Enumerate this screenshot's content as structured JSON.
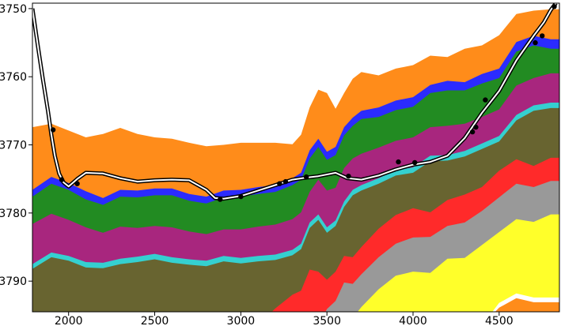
{
  "chart_data": {
    "type": "area",
    "title": "",
    "xlabel": "",
    "ylabel": "",
    "xlim": [
      1790,
      4850
    ],
    "ylim": [
      3794.5,
      3749.2
    ],
    "y_inverted": true,
    "grid": false,
    "legend": "none",
    "x_ticks": [
      2000,
      2500,
      3000,
      3500,
      4000,
      4500
    ],
    "y_ticks": [
      3750,
      3760,
      3770,
      3780,
      3790
    ],
    "x_tick_labels": [
      "2000",
      "2500",
      "3000",
      "3500",
      "4000",
      "4500"
    ],
    "y_tick_labels": [
      "3750",
      "3760",
      "3770",
      "3780",
      "3790"
    ],
    "x": [
      1790,
      1900,
      2000,
      2100,
      2200,
      2300,
      2400,
      2500,
      2600,
      2700,
      2800,
      2900,
      3000,
      3100,
      3200,
      3300,
      3350,
      3400,
      3450,
      3500,
      3550,
      3600,
      3650,
      3700,
      3800,
      3900,
      4000,
      4100,
      4200,
      4300,
      4400,
      4500,
      4600,
      4700,
      4800,
      4850
    ],
    "layers": [
      {
        "color": "#ff8c1a",
        "top": [
          3767.4,
          3766.9,
          3767.9,
          3768.9,
          3768.4,
          3767.5,
          3768.4,
          3768.9,
          3769.1,
          3769.7,
          3770.2,
          3770.0,
          3769.7,
          3769.7,
          3769.7,
          3769.9,
          3768.5,
          3764.5,
          3761.9,
          3762.4,
          3764.7,
          3762.4,
          3760.3,
          3759.3,
          3759.8,
          3758.8,
          3758.3,
          3756.9,
          3757.1,
          3755.9,
          3755.4,
          3753.9,
          3750.8,
          3750.3,
          3750.1,
          3750.1
        ]
      },
      {
        "color": "#2b2bff",
        "top": [
          3776.6,
          3774.7,
          3775.6,
          3776.8,
          3777.8,
          3776.6,
          3776.7,
          3776.4,
          3776.4,
          3777.2,
          3777.6,
          3776.7,
          3776.6,
          3776.2,
          3775.9,
          3774.9,
          3774.1,
          3770.8,
          3769.1,
          3771.0,
          3770.3,
          3767.4,
          3766.0,
          3765.0,
          3764.5,
          3763.5,
          3763.0,
          3761.2,
          3760.6,
          3760.8,
          3759.6,
          3758.8,
          3754.9,
          3754.0,
          3754.5,
          3754.5
        ]
      },
      {
        "color": "#228b22",
        "top": [
          3777.6,
          3775.7,
          3776.6,
          3778.0,
          3778.8,
          3777.6,
          3777.7,
          3777.4,
          3777.4,
          3778.2,
          3778.6,
          3777.7,
          3777.6,
          3777.2,
          3776.9,
          3775.9,
          3775.1,
          3772.0,
          3770.3,
          3772.2,
          3771.5,
          3768.6,
          3767.2,
          3766.2,
          3765.9,
          3764.9,
          3764.4,
          3762.4,
          3762.0,
          3762.0,
          3761.0,
          3760.2,
          3756.3,
          3755.4,
          3755.9,
          3755.9
        ]
      },
      {
        "color": "#a8267e",
        "top": [
          3781.6,
          3780.1,
          3781.0,
          3782.1,
          3782.9,
          3782.0,
          3782.2,
          3781.9,
          3782.1,
          3782.7,
          3783.1,
          3782.4,
          3782.4,
          3782.0,
          3781.7,
          3780.9,
          3779.9,
          3776.9,
          3775.1,
          3776.7,
          3776.3,
          3773.4,
          3772.0,
          3771.3,
          3770.4,
          3769.4,
          3768.9,
          3767.4,
          3767.2,
          3766.9,
          3765.9,
          3764.8,
          3761.3,
          3760.2,
          3759.5,
          3759.5
        ]
      },
      {
        "color": "#35d0d0",
        "top": [
          3787.5,
          3785.8,
          3786.3,
          3787.2,
          3787.3,
          3786.7,
          3786.4,
          3786.0,
          3786.5,
          3786.8,
          3787.0,
          3786.3,
          3786.6,
          3786.3,
          3786.1,
          3785.4,
          3784.5,
          3781.4,
          3780.2,
          3782.1,
          3781.1,
          3778.3,
          3776.6,
          3775.9,
          3774.9,
          3773.7,
          3773.3,
          3771.6,
          3771.5,
          3770.9,
          3769.8,
          3768.7,
          3765.6,
          3764.2,
          3763.8,
          3763.8
        ]
      },
      {
        "color": "#686430",
        "top": [
          3788.2,
          3786.5,
          3787.0,
          3788.0,
          3788.1,
          3787.5,
          3787.2,
          3786.8,
          3787.3,
          3787.6,
          3787.8,
          3787.1,
          3787.4,
          3787.1,
          3786.9,
          3786.2,
          3785.3,
          3782.2,
          3781.0,
          3782.9,
          3781.9,
          3779.1,
          3777.4,
          3776.7,
          3775.7,
          3774.5,
          3774.1,
          3772.4,
          3772.3,
          3771.7,
          3770.6,
          3769.5,
          3766.4,
          3765.0,
          3764.6,
          3764.6
        ]
      },
      {
        "color": "#ff2a2a",
        "top": [
          3800.0,
          3800.0,
          3800.0,
          3800.0,
          3800.0,
          3800.0,
          3800.0,
          3800.0,
          3800.0,
          3800.0,
          3800.0,
          3800.0,
          3800.0,
          3800.0,
          3794.0,
          3792.0,
          3791.4,
          3788.3,
          3788.6,
          3789.8,
          3788.6,
          3786.3,
          3786.5,
          3785.0,
          3782.3,
          3780.3,
          3779.3,
          3779.9,
          3778.1,
          3777.3,
          3776.2,
          3773.8,
          3772.1,
          3773.1,
          3771.9,
          3771.9
        ]
      },
      {
        "color": "#8fd08f",
        "top": [
          3800.0,
          3800.0,
          3800.0,
          3800.0,
          3800.0,
          3800.0,
          3800.0,
          3800.0,
          3800.0,
          3800.0,
          3800.0,
          3800.0,
          3800.0,
          3800.0,
          3800.0,
          3800.0,
          3800.0,
          3800.0,
          3800.0,
          3795.3,
          3794.4,
          3791.7,
          3792.2,
          3790.4,
          3788.1,
          3786.1,
          3785.2,
          3785.0,
          3783.6,
          3783.3,
          3781.6,
          3779.7,
          3777.6,
          3777.8,
          3777.3,
          3777.3
        ]
      },
      {
        "color": "#999999",
        "top": [
          3800.0,
          3800.0,
          3800.0,
          3800.0,
          3800.0,
          3800.0,
          3800.0,
          3800.0,
          3800.0,
          3800.0,
          3800.0,
          3800.0,
          3800.0,
          3800.0,
          3800.0,
          3800.0,
          3800.0,
          3800.0,
          3800.0,
          3794.1,
          3792.9,
          3790.2,
          3790.4,
          3789.0,
          3786.5,
          3784.5,
          3783.6,
          3783.5,
          3781.9,
          3781.4,
          3779.7,
          3777.7,
          3775.7,
          3776.2,
          3775.3,
          3775.3
        ]
      },
      {
        "color": "#ffff2a",
        "top": [
          3800.0,
          3800.0,
          3800.0,
          3800.0,
          3800.0,
          3800.0,
          3800.0,
          3800.0,
          3800.0,
          3800.0,
          3800.0,
          3800.0,
          3800.0,
          3800.0,
          3800.0,
          3800.0,
          3800.0,
          3800.0,
          3800.0,
          3800.0,
          3800.0,
          3796.0,
          3795.4,
          3793.8,
          3791.2,
          3789.2,
          3788.6,
          3788.8,
          3786.7,
          3786.6,
          3784.7,
          3782.8,
          3780.9,
          3781.3,
          3780.2,
          3780.2
        ]
      },
      {
        "color": "#ffffff",
        "top": [
          3800.0,
          3800.0,
          3800.0,
          3800.0,
          3800.0,
          3800.0,
          3800.0,
          3800.0,
          3800.0,
          3800.0,
          3800.0,
          3800.0,
          3800.0,
          3800.0,
          3800.0,
          3800.0,
          3800.0,
          3800.0,
          3800.0,
          3800.0,
          3800.0,
          3800.0,
          3800.0,
          3800.0,
          3800.0,
          3800.0,
          3800.0,
          3800.0,
          3800.0,
          3797.6,
          3796.5,
          3793.2,
          3791.8,
          3792.4,
          3792.4,
          3792.4
        ]
      },
      {
        "color": "#ff8c1a",
        "top": [
          3800.0,
          3800.0,
          3800.0,
          3800.0,
          3800.0,
          3800.0,
          3800.0,
          3800.0,
          3800.0,
          3800.0,
          3800.0,
          3800.0,
          3800.0,
          3800.0,
          3800.0,
          3800.0,
          3800.0,
          3800.0,
          3800.0,
          3800.0,
          3800.0,
          3800.0,
          3800.0,
          3800.0,
          3800.0,
          3800.0,
          3800.0,
          3800.0,
          3800.0,
          3798.3,
          3797.2,
          3793.9,
          3792.5,
          3793.1,
          3793.1,
          3793.1
        ]
      }
    ],
    "well_path": {
      "x": [
        1790,
        1820,
        1850,
        1880,
        1900,
        1920,
        1945,
        1970,
        2000,
        2050,
        2100,
        2200,
        2300,
        2400,
        2500,
        2600,
        2700,
        2800,
        2850,
        2900,
        3000,
        3100,
        3200,
        3300,
        3380,
        3450,
        3550,
        3620,
        3700,
        3800,
        3900,
        4000,
        4100,
        4200,
        4300,
        4400,
        4500,
        4600,
        4700,
        4760,
        4800,
        4830
      ],
      "y": [
        3750.0,
        3755.2,
        3760.3,
        3765.0,
        3768.5,
        3771.6,
        3774.2,
        3775.5,
        3776.1,
        3775.0,
        3774.1,
        3774.2,
        3774.9,
        3775.4,
        3775.2,
        3775.1,
        3775.2,
        3776.6,
        3777.8,
        3777.9,
        3777.5,
        3776.7,
        3775.9,
        3775.1,
        3774.8,
        3774.6,
        3774.1,
        3774.9,
        3775.1,
        3774.5,
        3773.6,
        3772.9,
        3772.5,
        3771.6,
        3769.0,
        3765.3,
        3762.1,
        3757.6,
        3754.0,
        3752.0,
        3750.2,
        3749.2
      ]
    },
    "markers": {
      "x": [
        1910,
        1960,
        2050,
        2880,
        3000,
        3225,
        3260,
        3380,
        3625,
        3915,
        4010,
        4345,
        4365,
        4420,
        4710,
        4750,
        4820
      ],
      "y": [
        3767.8,
        3775.1,
        3775.7,
        3778.0,
        3777.6,
        3775.7,
        3775.4,
        3774.7,
        3774.6,
        3772.5,
        3772.6,
        3768.1,
        3767.4,
        3763.4,
        3755.0,
        3754.0,
        3749.7
      ]
    }
  }
}
